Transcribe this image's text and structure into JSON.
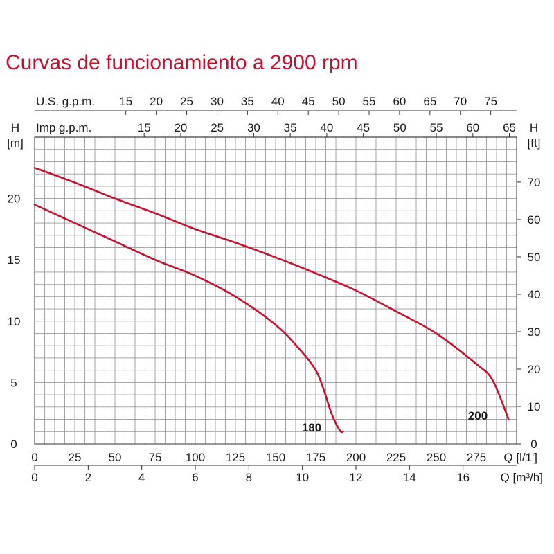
{
  "title": "Curvas de funcionamiento a 2900 rpm",
  "colors": {
    "curve": "#c8102e",
    "grid": "#9a9a9a",
    "text": "#1a1a1a"
  },
  "chart_data": {
    "type": "line",
    "title": "Curvas de funcionamiento a 2900 rpm",
    "x": {
      "label": "Q [l/1']",
      "range": [
        0,
        300
      ],
      "ticks": [
        0,
        25,
        50,
        75,
        100,
        125,
        150,
        175,
        200,
        225,
        250,
        275
      ]
    },
    "x2": {
      "label": "Q [m³/h]",
      "range": [
        0,
        18
      ],
      "ticks": [
        0,
        2,
        4,
        6,
        8,
        10,
        12,
        14,
        16
      ]
    },
    "x3": {
      "label": "U.S. g.p.m.",
      "ticks": [
        15,
        20,
        25,
        30,
        35,
        40,
        45,
        50,
        55,
        60,
        65,
        70,
        75
      ]
    },
    "x4": {
      "label": "Imp g.p.m.",
      "ticks": [
        15,
        20,
        25,
        30,
        35,
        40,
        45,
        50,
        55,
        60,
        65
      ]
    },
    "y": {
      "label": "H",
      "unit": "[m]",
      "range": [
        0,
        25
      ],
      "ticks": [
        0,
        5,
        10,
        15,
        20
      ]
    },
    "y2": {
      "label": "H",
      "unit": "[ft]",
      "ticks": [
        0,
        10,
        20,
        30,
        40,
        50,
        60,
        70
      ]
    },
    "grid": true,
    "series": [
      {
        "name": "180",
        "x": [
          0,
          25,
          50,
          75,
          100,
          125,
          150,
          165,
          175,
          180,
          185,
          190,
          192
        ],
        "y": [
          19.5,
          18.0,
          16.5,
          15.0,
          13.7,
          12.0,
          9.7,
          7.7,
          6.0,
          4.4,
          2.4,
          1.1,
          1.0
        ]
      },
      {
        "name": "200",
        "x": [
          0,
          25,
          50,
          75,
          100,
          125,
          150,
          175,
          200,
          225,
          250,
          275,
          285,
          295
        ],
        "y": [
          22.5,
          21.3,
          20.0,
          18.8,
          17.5,
          16.4,
          15.2,
          13.9,
          12.5,
          10.8,
          9.0,
          6.5,
          5.2,
          2.0
        ]
      }
    ]
  }
}
